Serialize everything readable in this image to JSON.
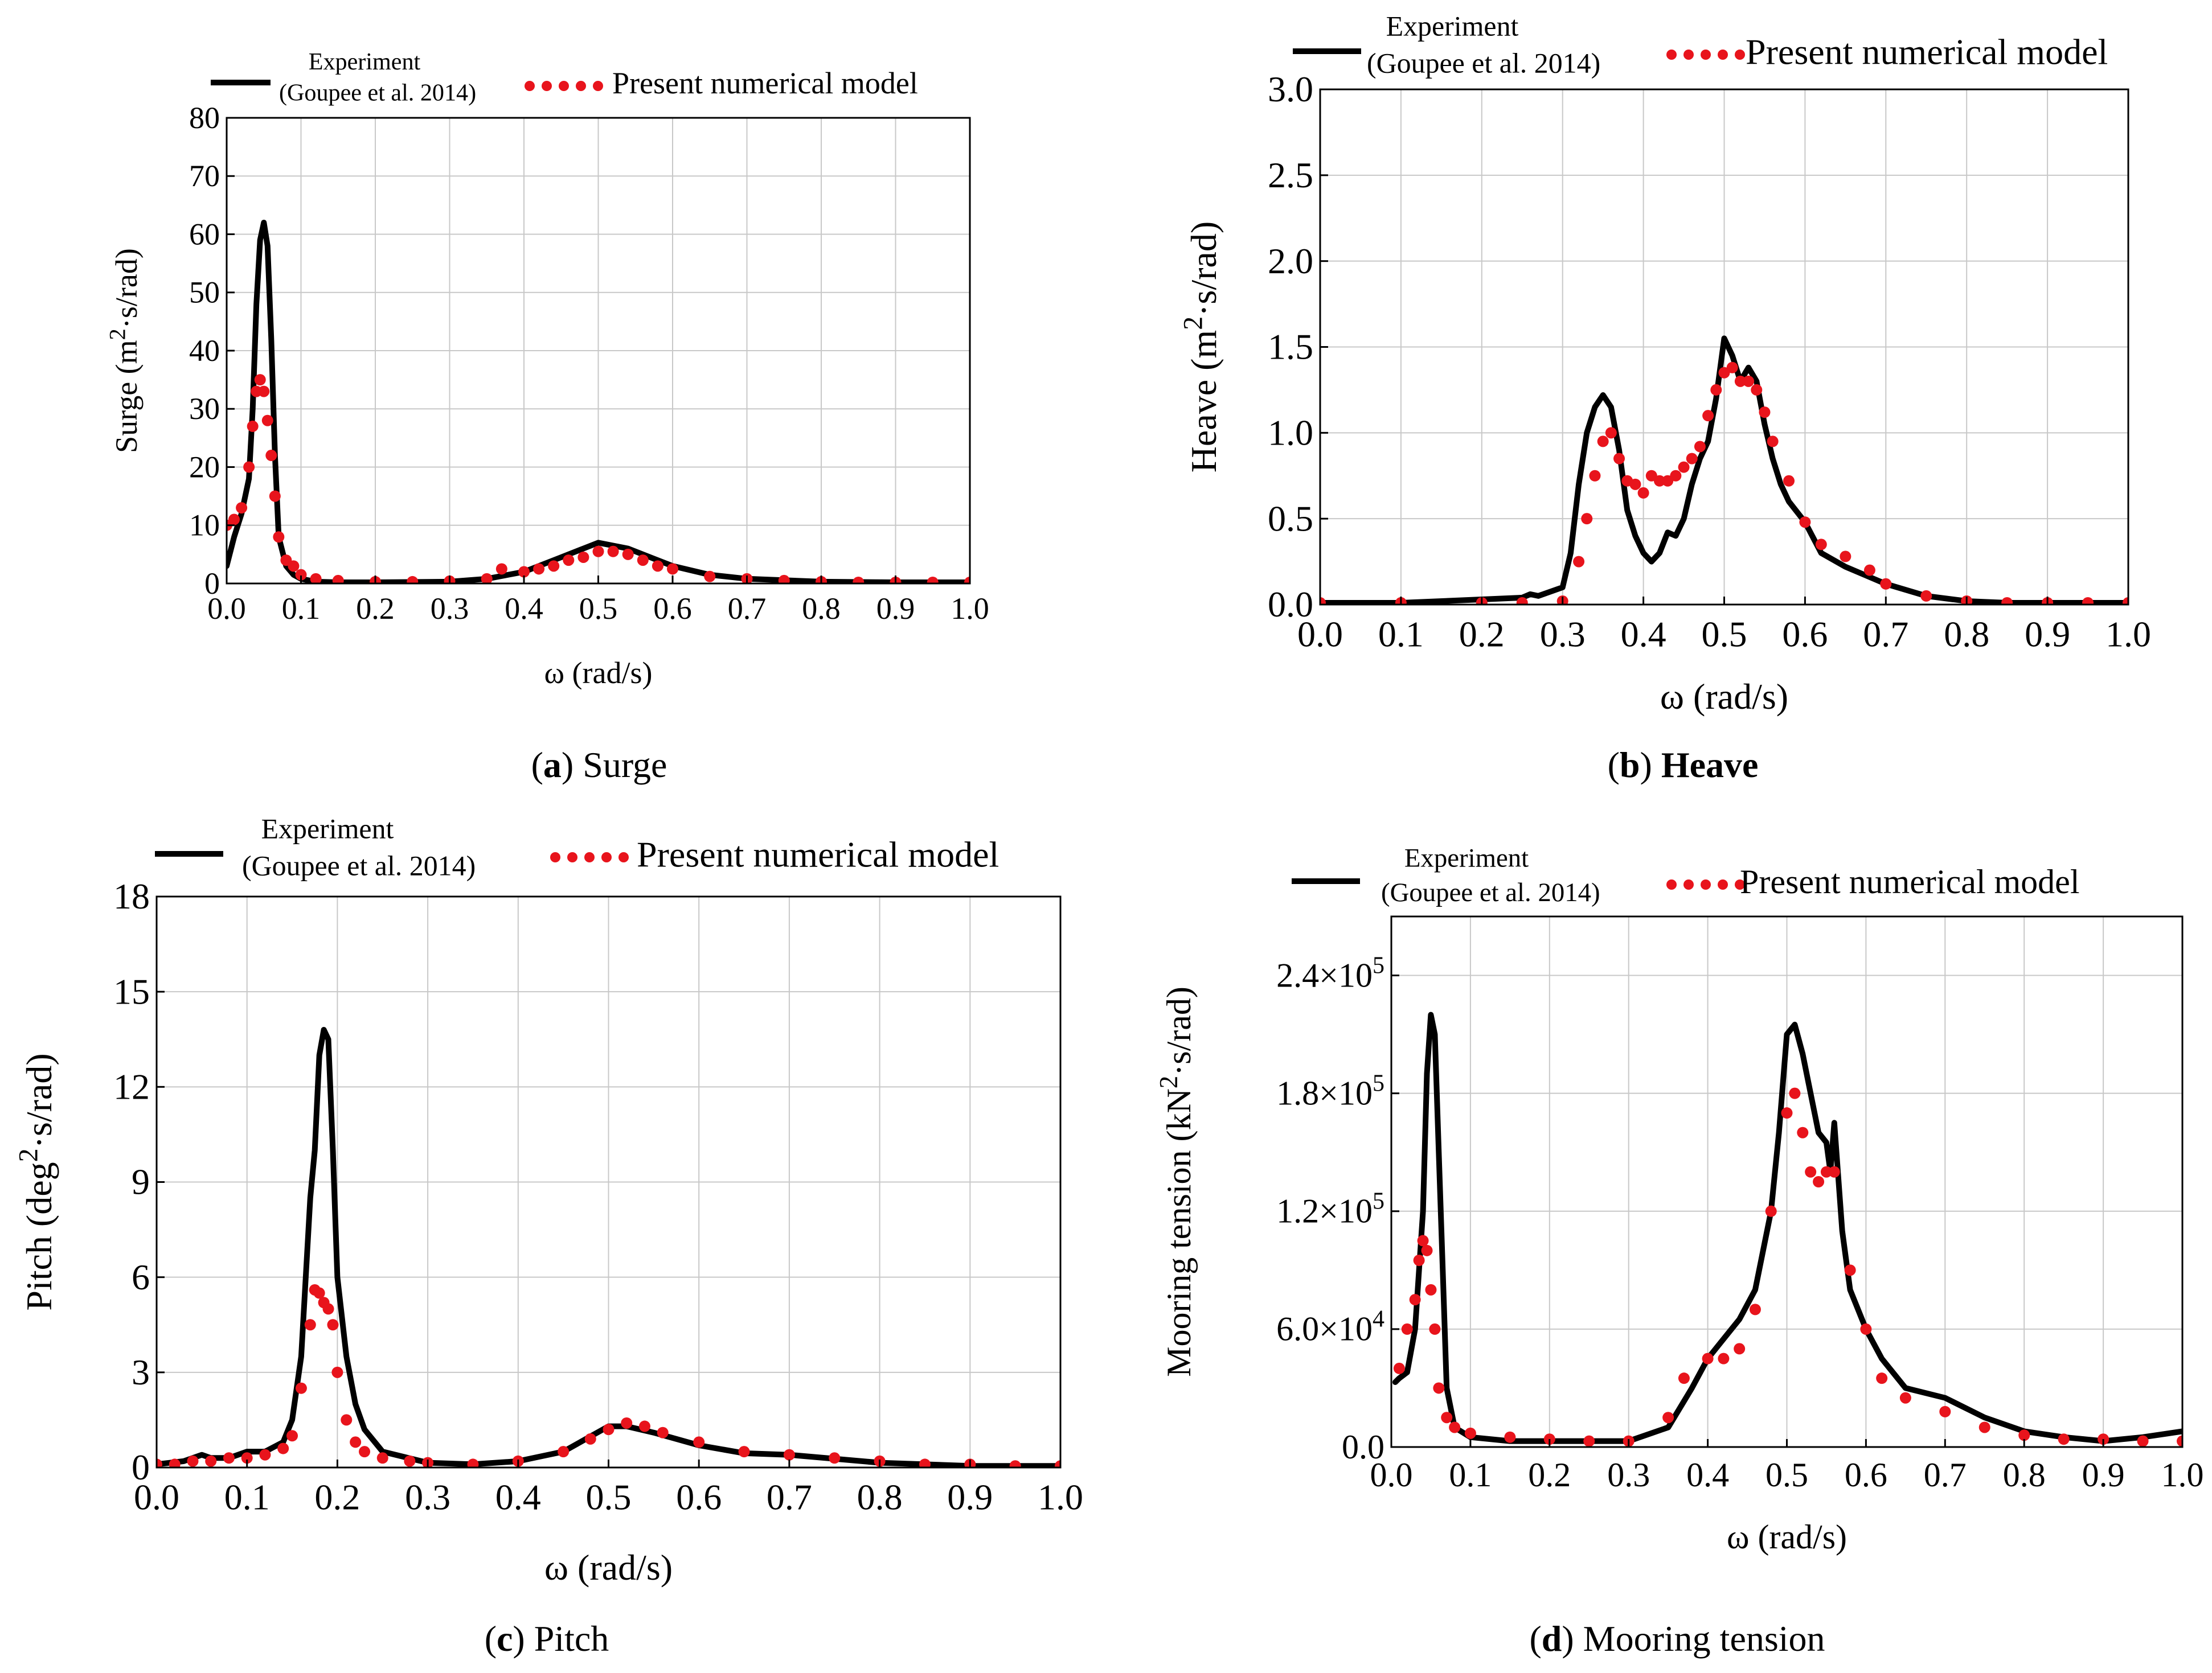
{
  "figure": {
    "colors": {
      "experiment": "#000000",
      "numerical": "#e8141c",
      "grid": "#c8c8c8",
      "axis": "#000000"
    }
  },
  "chart_data": [
    {
      "id": "a",
      "type": "line",
      "caption": {
        "letter": "a",
        "text": " Surge",
        "bold": false
      },
      "xlabel": "ω (rad/s)",
      "ylabel": {
        "pre": "Surge (m",
        "sup": "2",
        "post": "·s/rad)"
      },
      "xlim": [
        0,
        1
      ],
      "ylim": [
        0,
        80
      ],
      "xticks": [
        "0.0",
        "0.1",
        "0.2",
        "0.3",
        "0.4",
        "0.5",
        "0.6",
        "0.7",
        "0.8",
        "0.9",
        "1.0"
      ],
      "yticks": [
        {
          "v": 0,
          "label": "0"
        },
        {
          "v": 10,
          "label": "10"
        },
        {
          "v": 20,
          "label": "20"
        },
        {
          "v": 30,
          "label": "30"
        },
        {
          "v": 40,
          "label": "40"
        },
        {
          "v": 50,
          "label": "50"
        },
        {
          "v": 60,
          "label": "60"
        },
        {
          "v": 70,
          "label": "70"
        },
        {
          "v": 80,
          "label": "80"
        }
      ],
      "legend": {
        "exp_line1": "Experiment",
        "exp_line2": "(Goupee et al. 2014)",
        "num": "Present numerical model"
      },
      "series": [
        {
          "name": "Experiment (Goupee et al. 2014)",
          "style": "line",
          "x": [
            0.0,
            0.01,
            0.02,
            0.03,
            0.035,
            0.04,
            0.045,
            0.05,
            0.055,
            0.06,
            0.065,
            0.07,
            0.08,
            0.09,
            0.1,
            0.12,
            0.15,
            0.2,
            0.3,
            0.35,
            0.4,
            0.45,
            0.48,
            0.5,
            0.52,
            0.54,
            0.56,
            0.6,
            0.65,
            0.7,
            0.8,
            0.9,
            1.0
          ],
          "y": [
            3,
            8,
            12,
            18,
            30,
            48,
            59,
            62,
            58,
            42,
            22,
            8,
            3,
            1.5,
            0.8,
            0.3,
            0.2,
            0.2,
            0.3,
            0.8,
            2,
            4.5,
            6,
            7,
            6.5,
            6,
            5,
            3,
            1.5,
            0.8,
            0.3,
            0.2,
            0.2
          ]
        },
        {
          "name": "Present numerical model",
          "style": "dots",
          "x": [
            0.0,
            0.01,
            0.02,
            0.03,
            0.035,
            0.04,
            0.045,
            0.05,
            0.055,
            0.06,
            0.065,
            0.07,
            0.08,
            0.09,
            0.1,
            0.12,
            0.15,
            0.2,
            0.25,
            0.3,
            0.35,
            0.37,
            0.4,
            0.42,
            0.44,
            0.46,
            0.48,
            0.5,
            0.52,
            0.54,
            0.56,
            0.58,
            0.6,
            0.65,
            0.7,
            0.75,
            0.8,
            0.85,
            0.9,
            0.95,
            1.0
          ],
          "y": [
            10,
            11,
            13,
            20,
            27,
            33,
            35,
            33,
            28,
            22,
            15,
            8,
            4,
            3,
            1.5,
            0.8,
            0.5,
            0.3,
            0.3,
            0.4,
            0.8,
            2.5,
            2,
            2.5,
            3,
            4,
            4.5,
            5.5,
            5.5,
            5,
            4,
            3,
            2.5,
            1.2,
            0.8,
            0.5,
            0.3,
            0.2,
            0.2,
            0.2,
            0.2
          ]
        }
      ]
    },
    {
      "id": "b",
      "type": "line",
      "caption": {
        "letter": "b",
        "text": " Heave",
        "bold": true
      },
      "xlabel": "ω (rad/s)",
      "ylabel": {
        "pre": "Heave (m",
        "sup": "2",
        "post": "·s/rad)"
      },
      "xlim": [
        0,
        1
      ],
      "ylim": [
        0,
        3
      ],
      "xticks": [
        "0.0",
        "0.1",
        "0.2",
        "0.3",
        "0.4",
        "0.5",
        "0.6",
        "0.7",
        "0.8",
        "0.9",
        "1.0"
      ],
      "yticks": [
        {
          "v": 0,
          "label": "0.0"
        },
        {
          "v": 0.5,
          "label": "0.5"
        },
        {
          "v": 1,
          "label": "1.0"
        },
        {
          "v": 1.5,
          "label": "1.5"
        },
        {
          "v": 2,
          "label": "2.0"
        },
        {
          "v": 2.5,
          "label": "2.5"
        },
        {
          "v": 3,
          "label": "3.0"
        }
      ],
      "legend": {
        "exp_line1": "Experiment",
        "exp_line2": "(Goupee et al. 2014)",
        "num": "Present numerical model"
      },
      "series": [
        {
          "name": "Experiment (Goupee et al. 2014)",
          "style": "line",
          "x": [
            0.0,
            0.1,
            0.2,
            0.25,
            0.26,
            0.27,
            0.3,
            0.31,
            0.32,
            0.33,
            0.34,
            0.35,
            0.36,
            0.37,
            0.38,
            0.39,
            0.4,
            0.41,
            0.42,
            0.43,
            0.44,
            0.45,
            0.46,
            0.47,
            0.48,
            0.49,
            0.5,
            0.51,
            0.52,
            0.53,
            0.54,
            0.55,
            0.56,
            0.57,
            0.58,
            0.6,
            0.62,
            0.65,
            0.7,
            0.75,
            0.8,
            0.85,
            0.9,
            1.0
          ],
          "y": [
            0.01,
            0.01,
            0.03,
            0.04,
            0.06,
            0.05,
            0.1,
            0.3,
            0.7,
            1.0,
            1.15,
            1.22,
            1.15,
            0.9,
            0.55,
            0.4,
            0.3,
            0.25,
            0.3,
            0.42,
            0.4,
            0.5,
            0.7,
            0.85,
            0.95,
            1.2,
            1.55,
            1.45,
            1.3,
            1.38,
            1.3,
            1.05,
            0.85,
            0.7,
            0.6,
            0.48,
            0.3,
            0.22,
            0.12,
            0.05,
            0.02,
            0.01,
            0.01,
            0.01
          ]
        },
        {
          "name": "Present numerical model",
          "style": "dots",
          "x": [
            0.0,
            0.1,
            0.2,
            0.25,
            0.3,
            0.32,
            0.33,
            0.34,
            0.35,
            0.36,
            0.37,
            0.38,
            0.39,
            0.4,
            0.41,
            0.42,
            0.43,
            0.44,
            0.45,
            0.46,
            0.47,
            0.48,
            0.49,
            0.5,
            0.51,
            0.52,
            0.53,
            0.54,
            0.55,
            0.56,
            0.58,
            0.6,
            0.62,
            0.65,
            0.68,
            0.7,
            0.75,
            0.8,
            0.85,
            0.9,
            0.95,
            1.0
          ],
          "y": [
            0.01,
            0.01,
            0.01,
            0.01,
            0.02,
            0.25,
            0.5,
            0.75,
            0.95,
            1.0,
            0.85,
            0.72,
            0.7,
            0.65,
            0.75,
            0.72,
            0.72,
            0.75,
            0.8,
            0.85,
            0.92,
            1.1,
            1.25,
            1.35,
            1.38,
            1.3,
            1.3,
            1.25,
            1.12,
            0.95,
            0.72,
            0.48,
            0.35,
            0.28,
            0.2,
            0.12,
            0.05,
            0.02,
            0.01,
            0.01,
            0.01,
            0.01
          ]
        }
      ]
    },
    {
      "id": "c",
      "type": "line",
      "caption": {
        "letter": "c",
        "text": " Pitch",
        "bold": false
      },
      "xlabel": "ω (rad/s)",
      "ylabel": {
        "pre": "Pitch (deg",
        "sup": "2",
        "post": "·s/rad)"
      },
      "xlim": [
        0,
        1
      ],
      "ylim": [
        0,
        18
      ],
      "xticks": [
        "0.0",
        "0.1",
        "0.2",
        "0.3",
        "0.4",
        "0.5",
        "0.6",
        "0.7",
        "0.8",
        "0.9",
        "1.0"
      ],
      "yticks": [
        {
          "v": 0,
          "label": "0"
        },
        {
          "v": 3,
          "label": "3"
        },
        {
          "v": 6,
          "label": "6"
        },
        {
          "v": 9,
          "label": "9"
        },
        {
          "v": 12,
          "label": "12"
        },
        {
          "v": 15,
          "label": "15"
        },
        {
          "v": 18,
          "label": "18"
        }
      ],
      "legend": {
        "exp_line1": "Experiment",
        "exp_line2": "(Goupee et al. 2014)",
        "num": "Present numerical model"
      },
      "series": [
        {
          "name": "Experiment (Goupee et al. 2014)",
          "style": "line",
          "x": [
            0.0,
            0.03,
            0.05,
            0.06,
            0.08,
            0.1,
            0.12,
            0.14,
            0.15,
            0.16,
            0.17,
            0.175,
            0.18,
            0.185,
            0.19,
            0.195,
            0.2,
            0.21,
            0.22,
            0.23,
            0.25,
            0.3,
            0.35,
            0.4,
            0.45,
            0.5,
            0.52,
            0.55,
            0.6,
            0.65,
            0.7,
            0.8,
            0.9,
            1.0
          ],
          "y": [
            0.1,
            0.2,
            0.4,
            0.3,
            0.3,
            0.5,
            0.5,
            0.8,
            1.5,
            3.5,
            8.5,
            10,
            13,
            13.8,
            13.5,
            10,
            6,
            3.5,
            2,
            1.2,
            0.5,
            0.15,
            0.1,
            0.2,
            0.5,
            1.3,
            1.3,
            1.1,
            0.7,
            0.45,
            0.4,
            0.15,
            0.05,
            0.05
          ]
        },
        {
          "name": "Present numerical model",
          "style": "dots",
          "x": [
            0.0,
            0.02,
            0.04,
            0.06,
            0.08,
            0.1,
            0.12,
            0.14,
            0.15,
            0.16,
            0.17,
            0.175,
            0.18,
            0.185,
            0.19,
            0.195,
            0.2,
            0.21,
            0.22,
            0.23,
            0.25,
            0.28,
            0.3,
            0.35,
            0.4,
            0.45,
            0.48,
            0.5,
            0.52,
            0.54,
            0.56,
            0.6,
            0.65,
            0.7,
            0.75,
            0.8,
            0.85,
            0.9,
            0.95,
            1.0
          ],
          "y": [
            0.1,
            0.1,
            0.2,
            0.2,
            0.3,
            0.3,
            0.4,
            0.6,
            1.0,
            2.5,
            4.5,
            5.6,
            5.5,
            5.2,
            5.0,
            4.5,
            3.0,
            1.5,
            0.8,
            0.5,
            0.3,
            0.2,
            0.15,
            0.1,
            0.2,
            0.5,
            0.9,
            1.2,
            1.4,
            1.3,
            1.1,
            0.8,
            0.5,
            0.4,
            0.3,
            0.2,
            0.1,
            0.1,
            0.05,
            0.05
          ]
        }
      ]
    },
    {
      "id": "d",
      "type": "line",
      "caption": {
        "letter": "d",
        "text": " Mooring tension",
        "bold": false
      },
      "xlabel": "ω (rad/s)",
      "ylabel": {
        "pre": "Mooring tension (kN",
        "sup": "2",
        "post": "·s/rad)"
      },
      "xlim": [
        0,
        1
      ],
      "ylim": [
        0,
        270000
      ],
      "xticks": [
        "0.0",
        "0.1",
        "0.2",
        "0.3",
        "0.4",
        "0.5",
        "0.6",
        "0.7",
        "0.8",
        "0.9",
        "1.0"
      ],
      "yticks": [
        {
          "v": 0,
          "label": "0.0"
        },
        {
          "v": 60000,
          "label": "6.0×10",
          "exp": "4"
        },
        {
          "v": 120000,
          "label": "1.2×10",
          "exp": "5"
        },
        {
          "v": 180000,
          "label": "1.8×10",
          "exp": "5"
        },
        {
          "v": 240000,
          "label": "2.4×10",
          "exp": "5"
        }
      ],
      "legend": {
        "exp_line1": "Experiment",
        "exp_line2": "(Goupee et al. 2014)",
        "num": "Present numerical model"
      },
      "series": [
        {
          "name": "Experiment (Goupee et al. 2014)",
          "style": "line",
          "x": [
            0.005,
            0.01,
            0.02,
            0.03,
            0.04,
            0.045,
            0.05,
            0.055,
            0.06,
            0.065,
            0.07,
            0.08,
            0.1,
            0.15,
            0.2,
            0.3,
            0.35,
            0.38,
            0.4,
            0.42,
            0.44,
            0.46,
            0.48,
            0.49,
            0.5,
            0.51,
            0.52,
            0.53,
            0.54,
            0.55,
            0.555,
            0.56,
            0.57,
            0.58,
            0.6,
            0.62,
            0.65,
            0.7,
            0.75,
            0.8,
            0.85,
            0.9,
            0.95,
            1.0
          ],
          "y": [
            33000,
            35000,
            38000,
            60000,
            120000,
            190000,
            220000,
            210000,
            150000,
            90000,
            30000,
            10000,
            5000,
            3000,
            3000,
            3000,
            10000,
            30000,
            45000,
            55000,
            65000,
            80000,
            120000,
            160000,
            210000,
            215000,
            200000,
            180000,
            160000,
            155000,
            140000,
            165000,
            110000,
            80000,
            60000,
            45000,
            30000,
            25000,
            15000,
            8000,
            5000,
            3000,
            5000,
            8000
          ]
        },
        {
          "name": "Present numerical model",
          "style": "dots",
          "x": [
            0.01,
            0.02,
            0.03,
            0.035,
            0.04,
            0.045,
            0.05,
            0.055,
            0.06,
            0.07,
            0.08,
            0.1,
            0.15,
            0.2,
            0.25,
            0.3,
            0.35,
            0.37,
            0.4,
            0.42,
            0.44,
            0.46,
            0.48,
            0.5,
            0.51,
            0.52,
            0.53,
            0.54,
            0.55,
            0.56,
            0.58,
            0.6,
            0.62,
            0.65,
            0.7,
            0.75,
            0.8,
            0.85,
            0.9,
            0.95,
            1.0
          ],
          "y": [
            40000,
            60000,
            75000,
            95000,
            105000,
            100000,
            80000,
            60000,
            30000,
            15000,
            10000,
            7000,
            5000,
            4000,
            3000,
            3000,
            15000,
            35000,
            45000,
            45000,
            50000,
            70000,
            120000,
            170000,
            180000,
            160000,
            140000,
            135000,
            140000,
            140000,
            90000,
            60000,
            35000,
            25000,
            18000,
            10000,
            6000,
            4000,
            4000,
            3000,
            3000
          ]
        }
      ]
    }
  ]
}
